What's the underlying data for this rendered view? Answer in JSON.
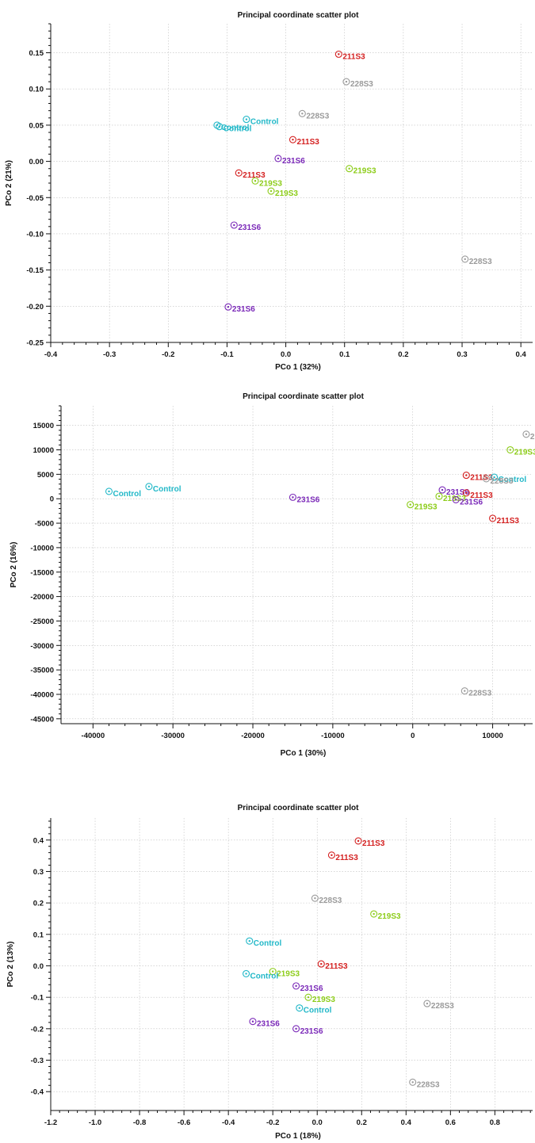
{
  "chart_data": [
    {
      "type": "scatter",
      "title": "Principal coordinate scatter plot",
      "xlabel": "PCo 1 (32%)",
      "ylabel": "PCo 2 (21%)",
      "xlim": [
        -0.4,
        0.42
      ],
      "ylim": [
        -0.25,
        0.19
      ],
      "grid": true,
      "x_ticks": [
        "-0.4",
        "-0.3",
        "-0.2",
        "-0.1",
        "0.0",
        "0.1",
        "0.2",
        "0.3",
        "0.4"
      ],
      "x_tick_values": [
        -0.4,
        -0.3,
        -0.2,
        -0.1,
        0.0,
        0.1,
        0.2,
        0.3,
        0.4
      ],
      "y_ticks": [
        "0.15",
        "0.10",
        "0.05",
        "0.00",
        "-0.05",
        "-0.10",
        "-0.15",
        "-0.20",
        "-0.25"
      ],
      "y_tick_values": [
        0.15,
        0.1,
        0.05,
        0.0,
        -0.05,
        -0.1,
        -0.15,
        -0.2,
        -0.25
      ],
      "points": [
        {
          "label": "211S3",
          "group": "211S3",
          "x": 0.09,
          "y": 0.148
        },
        {
          "label": "228S3",
          "group": "228S3",
          "x": 0.103,
          "y": 0.11
        },
        {
          "label": "228S3",
          "group": "228S3",
          "x": 0.028,
          "y": 0.066
        },
        {
          "label": "Control",
          "group": "Control",
          "x": -0.067,
          "y": 0.058
        },
        {
          "label": "Control",
          "group": "Control",
          "x": -0.117,
          "y": 0.05
        },
        {
          "label": "Control",
          "group": "Control",
          "x": -0.113,
          "y": 0.048
        },
        {
          "label": "211S3",
          "group": "211S3",
          "x": 0.012,
          "y": 0.03
        },
        {
          "label": "231S6",
          "group": "231S6",
          "x": -0.013,
          "y": 0.004
        },
        {
          "label": "219S3",
          "group": "219S3",
          "x": 0.108,
          "y": -0.01
        },
        {
          "label": "211S3",
          "group": "211S3",
          "x": -0.08,
          "y": -0.016
        },
        {
          "label": "219S3",
          "group": "219S3",
          "x": -0.052,
          "y": -0.027
        },
        {
          "label": "219S3",
          "group": "219S3",
          "x": -0.025,
          "y": -0.041
        },
        {
          "label": "231S6",
          "group": "231S6",
          "x": -0.088,
          "y": -0.088
        },
        {
          "label": "228S3",
          "group": "228S3",
          "x": 0.305,
          "y": -0.135
        },
        {
          "label": "231S6",
          "group": "231S6",
          "x": -0.098,
          "y": -0.201
        }
      ]
    },
    {
      "type": "scatter",
      "title": "Principal coordinate scatter plot",
      "xlabel": "PCo 1 (30%)",
      "ylabel": "PCo 2 (16%)",
      "xlim": [
        -44000,
        15000
      ],
      "ylim": [
        -46000,
        19000
      ],
      "grid": true,
      "x_ticks": [
        "-40000",
        "-30000",
        "-20000",
        "-10000",
        "0",
        "10000"
      ],
      "x_tick_values": [
        -40000,
        -30000,
        -20000,
        -10000,
        0,
        10000
      ],
      "y_ticks": [
        "15000",
        "10000",
        "5000",
        "0",
        "-5000",
        "-10000",
        "-15000",
        "-20000",
        "-25000",
        "-30000",
        "-35000",
        "-40000",
        "-45000"
      ],
      "y_tick_values": [
        15000,
        10000,
        5000,
        0,
        -5000,
        -10000,
        -15000,
        -20000,
        -25000,
        -30000,
        -35000,
        -40000,
        -45000
      ],
      "points": [
        {
          "label": "2",
          "group": "228S3",
          "x": 14200,
          "y": 13200
        },
        {
          "label": "219S3",
          "group": "219S3",
          "x": 12200,
          "y": 10000
        },
        {
          "label": "211S3",
          "group": "211S3",
          "x": 6700,
          "y": 4800
        },
        {
          "label": "Control",
          "group": "Control",
          "x": 10200,
          "y": 4400
        },
        {
          "label": "228S3",
          "group": "228S3",
          "x": 9200,
          "y": 4100
        },
        {
          "label": "Control",
          "group": "Control",
          "x": -33000,
          "y": 2500
        },
        {
          "label": "Control",
          "group": "Control",
          "x": -38000,
          "y": 1500
        },
        {
          "label": "231S6",
          "group": "231S6",
          "x": 3700,
          "y": 1800
        },
        {
          "label": "211S3",
          "group": "211S3",
          "x": 6700,
          "y": 1200
        },
        {
          "label": "219S3",
          "group": "219S3",
          "x": 3300,
          "y": 500
        },
        {
          "label": "231S6",
          "group": "231S6",
          "x": -15000,
          "y": 300
        },
        {
          "label": "231S6",
          "group": "231S6",
          "x": 5400,
          "y": -200
        },
        {
          "label": "219S3",
          "group": "219S3",
          "x": -300,
          "y": -1200
        },
        {
          "label": "211S3",
          "group": "211S3",
          "x": 10000,
          "y": -4000
        },
        {
          "label": "228S3",
          "group": "228S3",
          "x": 6500,
          "y": -39300
        }
      ]
    },
    {
      "type": "scatter",
      "title": "Principal coordinate scatter plot",
      "xlabel": "PCo 1 (18%)",
      "ylabel": "PCo 2 (13%)",
      "xlim": [
        -1.2,
        0.97
      ],
      "ylim": [
        -0.46,
        0.47
      ],
      "grid": true,
      "x_ticks": [
        "-1.2",
        "-1.0",
        "-0.8",
        "-0.6",
        "-0.4",
        "-0.2",
        "0.0",
        "0.2",
        "0.4",
        "0.6",
        "0.8"
      ],
      "x_tick_values": [
        -1.2,
        -1.0,
        -0.8,
        -0.6,
        -0.4,
        -0.2,
        0.0,
        0.2,
        0.4,
        0.6,
        0.8
      ],
      "y_ticks": [
        "0.4",
        "0.3",
        "0.2",
        "0.1",
        "0.0",
        "-0.1",
        "-0.2",
        "-0.3",
        "-0.4"
      ],
      "y_tick_values": [
        0.4,
        0.3,
        0.2,
        0.1,
        0.0,
        -0.1,
        -0.2,
        -0.3,
        -0.4
      ],
      "points": [
        {
          "label": "211S3",
          "group": "211S3",
          "x": 0.185,
          "y": 0.397
        },
        {
          "label": "211S3",
          "group": "211S3",
          "x": 0.065,
          "y": 0.352
        },
        {
          "label": "228S3",
          "group": "228S3",
          "x": -0.01,
          "y": 0.215
        },
        {
          "label": "219S3",
          "group": "219S3",
          "x": 0.255,
          "y": 0.165
        },
        {
          "label": "Control",
          "group": "Control",
          "x": -0.305,
          "y": 0.079
        },
        {
          "label": "211S3",
          "group": "211S3",
          "x": 0.018,
          "y": 0.006
        },
        {
          "label": "219S3",
          "group": "219S3",
          "x": -0.2,
          "y": -0.018
        },
        {
          "label": "Control",
          "group": "Control",
          "x": -0.32,
          "y": -0.025
        },
        {
          "label": "231S6",
          "group": "231S6",
          "x": -0.095,
          "y": -0.064
        },
        {
          "label": "219S3",
          "group": "219S3",
          "x": -0.04,
          "y": -0.1
        },
        {
          "label": "Control",
          "group": "Control",
          "x": -0.08,
          "y": -0.134
        },
        {
          "label": "228S3",
          "group": "228S3",
          "x": 0.495,
          "y": -0.12
        },
        {
          "label": "231S6",
          "group": "231S6",
          "x": -0.29,
          "y": -0.177
        },
        {
          "label": "231S6",
          "group": "231S6",
          "x": -0.095,
          "y": -0.2
        },
        {
          "label": "228S3",
          "group": "228S3",
          "x": 0.43,
          "y": -0.37
        }
      ]
    }
  ],
  "colors": {
    "211S3": "#d42020",
    "228S3": "#9a9a9a",
    "Control": "#22b8c8",
    "219S3": "#8ccc18",
    "231S6": "#7a28b8"
  }
}
